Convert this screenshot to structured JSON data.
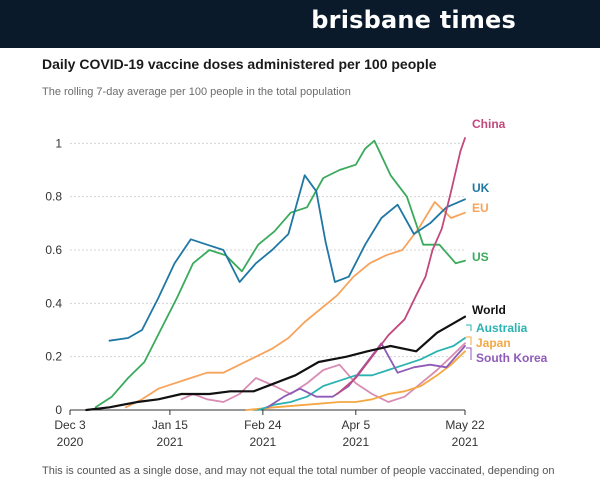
{
  "header": {
    "brand": "brisbane times"
  },
  "footnote": "This is counted as a single dose, and may not equal the total number of people vaccinated, depending on",
  "chart_data": {
    "type": "line",
    "title": "Daily COVID-19 vaccine doses administered per 100 people",
    "subtitle": "The rolling 7-day average per 100 people in the total population",
    "xlabel": "",
    "ylabel": "",
    "x_ticks": [
      {
        "date": "2020-12-03",
        "line1": "Dec 3",
        "line2": "2020"
      },
      {
        "date": "2021-01-15",
        "line1": "Jan 15",
        "line2": "2021"
      },
      {
        "date": "2021-02-24",
        "line1": "Feb 24",
        "line2": "2021"
      },
      {
        "date": "2021-04-05",
        "line1": "Apr 5",
        "line2": "2021"
      },
      {
        "date": "2021-05-22",
        "line1": "May 22",
        "line2": "2021"
      }
    ],
    "xlim": [
      "2020-12-03",
      "2021-05-22"
    ],
    "ylim": [
      0,
      1.05
    ],
    "y_ticks": [
      0,
      0.2,
      0.4,
      0.6,
      0.8,
      1
    ],
    "y_tick_labels": [
      "0",
      "0.2",
      "0.4",
      "0.6",
      "0.8",
      "1"
    ],
    "grid": true,
    "legend": "inline labels at line ends",
    "series": [
      {
        "name": "China",
        "color": "#c2497d",
        "x": [
          "2021-03-28",
          "2021-04-05",
          "2021-04-12",
          "2021-04-19",
          "2021-04-26",
          "2021-05-01",
          "2021-05-05",
          "2021-05-08",
          "2021-05-12",
          "2021-05-16",
          "2021-05-20",
          "2021-05-22"
        ],
        "y": [
          0.06,
          0.12,
          0.2,
          0.28,
          0.34,
          0.43,
          0.5,
          0.6,
          0.68,
          0.82,
          0.97,
          1.02
        ]
      },
      {
        "name": "UK",
        "color": "#1f77a4",
        "x": [
          "2020-12-20",
          "2020-12-28",
          "2021-01-03",
          "2021-01-10",
          "2021-01-17",
          "2021-01-24",
          "2021-01-31",
          "2021-02-07",
          "2021-02-14",
          "2021-02-21",
          "2021-02-28",
          "2021-03-07",
          "2021-03-14",
          "2021-03-19",
          "2021-03-23",
          "2021-03-27",
          "2021-04-02",
          "2021-04-09",
          "2021-04-16",
          "2021-04-23",
          "2021-04-30",
          "2021-05-07",
          "2021-05-14",
          "2021-05-22"
        ],
        "y": [
          0.26,
          0.27,
          0.3,
          0.42,
          0.55,
          0.64,
          0.62,
          0.6,
          0.48,
          0.55,
          0.6,
          0.66,
          0.88,
          0.82,
          0.63,
          0.48,
          0.5,
          0.62,
          0.72,
          0.77,
          0.66,
          0.7,
          0.76,
          0.79
        ]
      },
      {
        "name": "EU",
        "color": "#f7a35c",
        "x": [
          "2020-12-27",
          "2021-01-03",
          "2021-01-10",
          "2021-01-17",
          "2021-01-24",
          "2021-01-31",
          "2021-02-07",
          "2021-02-14",
          "2021-02-21",
          "2021-02-28",
          "2021-03-07",
          "2021-03-14",
          "2021-03-21",
          "2021-03-28",
          "2021-04-04",
          "2021-04-11",
          "2021-04-18",
          "2021-04-25",
          "2021-05-02",
          "2021-05-09",
          "2021-05-16",
          "2021-05-22"
        ],
        "y": [
          0.01,
          0.04,
          0.08,
          0.1,
          0.12,
          0.14,
          0.14,
          0.17,
          0.2,
          0.23,
          0.27,
          0.33,
          0.38,
          0.43,
          0.5,
          0.55,
          0.58,
          0.6,
          0.68,
          0.78,
          0.72,
          0.74
        ]
      },
      {
        "name": "US",
        "color": "#3aaa5c",
        "x": [
          "2020-12-14",
          "2020-12-21",
          "2020-12-28",
          "2021-01-04",
          "2021-01-11",
          "2021-01-18",
          "2021-01-25",
          "2021-02-01",
          "2021-02-08",
          "2021-02-15",
          "2021-02-22",
          "2021-03-01",
          "2021-03-08",
          "2021-03-15",
          "2021-03-22",
          "2021-03-29",
          "2021-04-05",
          "2021-04-09",
          "2021-04-13",
          "2021-04-20",
          "2021-04-27",
          "2021-05-04",
          "2021-05-11",
          "2021-05-18",
          "2021-05-22"
        ],
        "y": [
          0.01,
          0.05,
          0.12,
          0.18,
          0.3,
          0.42,
          0.55,
          0.6,
          0.58,
          0.52,
          0.62,
          0.67,
          0.74,
          0.76,
          0.87,
          0.9,
          0.92,
          0.98,
          1.01,
          0.88,
          0.8,
          0.62,
          0.62,
          0.55,
          0.56
        ]
      },
      {
        "name": "World",
        "color": "#111111",
        "x": [
          "2020-12-10",
          "2020-12-20",
          "2021-01-01",
          "2021-01-10",
          "2021-01-20",
          "2021-02-01",
          "2021-02-10",
          "2021-02-20",
          "2021-03-01",
          "2021-03-10",
          "2021-03-20",
          "2021-04-01",
          "2021-04-10",
          "2021-04-20",
          "2021-05-01",
          "2021-05-10",
          "2021-05-16",
          "2021-05-22"
        ],
        "y": [
          0.0,
          0.01,
          0.03,
          0.04,
          0.06,
          0.06,
          0.07,
          0.07,
          0.1,
          0.13,
          0.18,
          0.2,
          0.22,
          0.24,
          0.22,
          0.29,
          0.32,
          0.35
        ]
      },
      {
        "name": "Australia",
        "color": "#2bb3b1",
        "x": [
          "2021-02-22",
          "2021-03-01",
          "2021-03-08",
          "2021-03-15",
          "2021-03-22",
          "2021-03-29",
          "2021-04-05",
          "2021-04-12",
          "2021-04-19",
          "2021-04-26",
          "2021-05-03",
          "2021-05-10",
          "2021-05-17",
          "2021-05-22"
        ],
        "y": [
          0.0,
          0.02,
          0.03,
          0.05,
          0.09,
          0.11,
          0.13,
          0.13,
          0.15,
          0.17,
          0.19,
          0.22,
          0.24,
          0.27
        ]
      },
      {
        "name": "Japan",
        "color": "#f5a742",
        "x": [
          "2021-02-17",
          "2021-03-01",
          "2021-03-15",
          "2021-03-29",
          "2021-04-05",
          "2021-04-12",
          "2021-04-19",
          "2021-04-26",
          "2021-05-03",
          "2021-05-10",
          "2021-05-16",
          "2021-05-22"
        ],
        "y": [
          0.0,
          0.01,
          0.02,
          0.03,
          0.03,
          0.04,
          0.06,
          0.07,
          0.09,
          0.13,
          0.17,
          0.22
        ]
      },
      {
        "name": "South Korea",
        "color": "#8e5bb8",
        "x": [
          "2021-02-26",
          "2021-03-05",
          "2021-03-12",
          "2021-03-19",
          "2021-03-26",
          "2021-04-02",
          "2021-04-09",
          "2021-04-16",
          "2021-04-23",
          "2021-04-30",
          "2021-05-07",
          "2021-05-14",
          "2021-05-22"
        ],
        "y": [
          0.01,
          0.05,
          0.08,
          0.05,
          0.05,
          0.09,
          0.17,
          0.25,
          0.14,
          0.16,
          0.17,
          0.16,
          0.24
        ]
      },
      {
        "name": "",
        "color": "#d98cb3",
        "x": [
          "2021-01-20",
          "2021-01-25",
          "2021-01-31",
          "2021-02-07",
          "2021-02-14",
          "2021-02-21",
          "2021-03-01",
          "2021-03-08",
          "2021-03-15",
          "2021-03-22",
          "2021-03-29",
          "2021-04-05",
          "2021-04-12",
          "2021-04-19",
          "2021-04-26",
          "2021-05-03",
          "2021-05-10",
          "2021-05-16",
          "2021-05-22"
        ],
        "y": [
          0.04,
          0.06,
          0.04,
          0.03,
          0.06,
          0.12,
          0.09,
          0.06,
          0.1,
          0.15,
          0.17,
          0.1,
          0.06,
          0.03,
          0.05,
          0.1,
          0.15,
          0.2,
          0.25
        ]
      }
    ],
    "end_labels": [
      {
        "text": "China",
        "color": "#c2497d"
      },
      {
        "text": "UK",
        "color": "#1f77a4"
      },
      {
        "text": "EU",
        "color": "#f7a35c"
      },
      {
        "text": "US",
        "color": "#3aaa5c"
      },
      {
        "text": "World",
        "color": "#111111"
      },
      {
        "text": "Australia",
        "color": "#2bb3b1"
      },
      {
        "text": "Japan",
        "color": "#f5a742"
      },
      {
        "text": "South Korea",
        "color": "#8e5bb8"
      }
    ]
  }
}
